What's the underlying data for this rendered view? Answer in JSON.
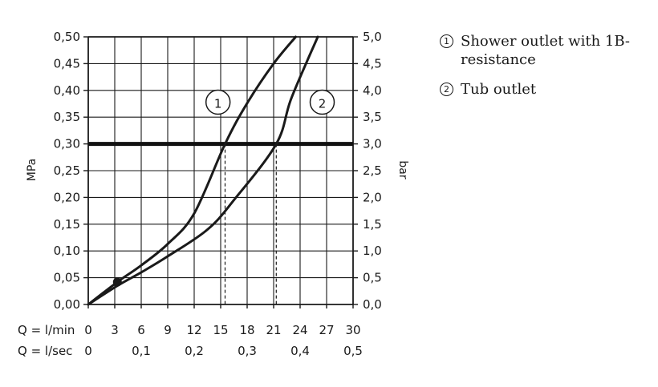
{
  "chart_data": {
    "type": "line",
    "ylabel_left": "MPa",
    "ylabel_right": "bar",
    "x_row1_label": "Q = l/min",
    "x_row2_label": "Q = l/sec",
    "x_ticks_lmin": [
      "0",
      "3",
      "6",
      "9",
      "12",
      "15",
      "18",
      "21",
      "24",
      "27",
      "30"
    ],
    "x_ticks_lsec": [
      {
        "v": 0,
        "label": "0"
      },
      {
        "v": 0.1,
        "label": "0,1"
      },
      {
        "v": 0.2,
        "label": "0,2"
      },
      {
        "v": 0.3,
        "label": "0,3"
      },
      {
        "v": 0.4,
        "label": "0,4"
      },
      {
        "v": 0.5,
        "label": "0,5"
      }
    ],
    "y_ticks_left": [
      "0,00",
      "0,05",
      "0,10",
      "0,15",
      "0,20",
      "0,25",
      "0,30",
      "0,35",
      "0,40",
      "0,45",
      "0,50"
    ],
    "y_ticks_right": [
      "0,0",
      "0,5",
      "1,0",
      "1,5",
      "2,0",
      "2,5",
      "3,0",
      "3,5",
      "4,0",
      "4,5",
      "5,0"
    ],
    "xlim": [
      0,
      30
    ],
    "ylim": [
      0,
      0.5
    ],
    "grid": true,
    "reference_line": {
      "y": 0.3
    },
    "marker_point": {
      "x": 3.3,
      "y": 0.042
    },
    "series": [
      {
        "id": "1",
        "x": [
          0,
          3.3,
          6,
          9,
          12,
          15.5,
          18,
          21,
          23.5
        ],
        "y": [
          0,
          0.042,
          0.073,
          0.113,
          0.17,
          0.3,
          0.376,
          0.45,
          0.5
        ]
      },
      {
        "id": "2",
        "x": [
          0,
          3.3,
          6,
          9,
          13.5,
          16.5,
          21.3,
          23,
          26
        ],
        "y": [
          0,
          0.035,
          0.06,
          0.09,
          0.14,
          0.195,
          0.3,
          0.385,
          0.5
        ]
      }
    ],
    "series_labels": [
      {
        "id": "1",
        "text": "1",
        "x": 14.7,
        "y": 0.378
      },
      {
        "id": "2",
        "text": "2",
        "x": 26.5,
        "y": 0.378
      }
    ],
    "dashed_drops": [
      15.5,
      21.3
    ]
  },
  "legend": [
    {
      "num": "1",
      "text": "Shower outlet with 1B-resistance"
    },
    {
      "num": "2",
      "text": "Tub outlet"
    }
  ]
}
